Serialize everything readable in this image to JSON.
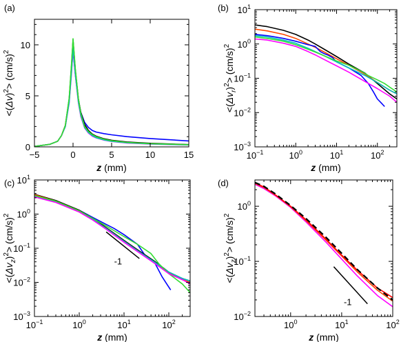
{
  "chart_data": [
    {
      "panel": "(a)",
      "type": "line",
      "xlabel_var": "z",
      "xlabel_unit": "(mm)",
      "ylabel_base": "<(",
      "ylabel_var": "Δv",
      "ylabel_sub": "",
      "ylabel_close": ")",
      "ylabel_sup": "2",
      "ylabel_unit": "> (cm/s)",
      "ylabel_unit_sup": "2",
      "xscale": "linear",
      "yscale": "linear",
      "xlim": [
        -5,
        15
      ],
      "ylim": [
        0,
        12.5
      ],
      "xticks": [
        -5,
        0,
        5,
        10,
        15
      ],
      "xtick_labels": [
        "−5",
        "0",
        "5",
        "10",
        "15"
      ],
      "yticks": [
        0,
        5,
        10
      ],
      "ytick_labels": [
        "0",
        "5",
        "10"
      ],
      "series": [
        {
          "color": "#0000ff",
          "x": [
            -5,
            -3,
            -2,
            -1.5,
            -1,
            -0.5,
            -0.2,
            0,
            0.3,
            0.7,
            1,
            1.5,
            2,
            2.5,
            3,
            4,
            5,
            7,
            10,
            15
          ],
          "y": [
            0.05,
            0.25,
            0.55,
            1.1,
            2,
            4.5,
            7.5,
            9.4,
            7,
            4.5,
            3.4,
            2.4,
            1.9,
            1.6,
            1.45,
            1.3,
            1.18,
            1.0,
            0.82,
            0.58
          ]
        },
        {
          "color": "#000000",
          "x": [
            -5,
            -3,
            -2,
            -1.5,
            -1,
            -0.5,
            -0.2,
            0,
            0.3,
            0.7,
            1,
            1.5,
            2,
            2.5,
            3,
            4,
            5,
            7,
            10,
            15
          ],
          "y": [
            0.05,
            0.25,
            0.55,
            1.1,
            2.1,
            4.7,
            8,
            10.5,
            7.5,
            4.7,
            3.4,
            2.2,
            1.6,
            1.25,
            1.05,
            0.8,
            0.65,
            0.48,
            0.35,
            0.22
          ]
        },
        {
          "color": "#ff4500",
          "x": [
            -5,
            -3,
            -2,
            -1.5,
            -1,
            -0.5,
            -0.2,
            0,
            0.3,
            0.7,
            1,
            1.5,
            2,
            2.5,
            3,
            4,
            5,
            7,
            10,
            15
          ],
          "y": [
            0.05,
            0.25,
            0.55,
            1.1,
            2.1,
            4.6,
            7.8,
            10.2,
            7.3,
            4.5,
            3.2,
            2.0,
            1.45,
            1.15,
            0.95,
            0.72,
            0.58,
            0.42,
            0.3,
            0.2
          ]
        },
        {
          "color": "#ff00ff",
          "x": [
            -5,
            -3,
            -2,
            -1.5,
            -1,
            -0.5,
            -0.2,
            0,
            0.3,
            0.7,
            1,
            1.5,
            2,
            2.5,
            3,
            4,
            5,
            7,
            10,
            15
          ],
          "y": [
            0.05,
            0.25,
            0.55,
            1.1,
            2,
            4.3,
            7.2,
            9.6,
            7,
            4.3,
            3.0,
            1.85,
            1.35,
            1.05,
            0.88,
            0.66,
            0.53,
            0.38,
            0.28,
            0.18
          ]
        },
        {
          "color": "#00bfbf",
          "x": [
            -5,
            -3,
            -2,
            -1.5,
            -1,
            -0.5,
            -0.2,
            0,
            0.3,
            0.7,
            1,
            1.5,
            2,
            2.5,
            3,
            4,
            5,
            7,
            10,
            15
          ],
          "y": [
            0.05,
            0.25,
            0.55,
            1.1,
            2,
            4.4,
            7.4,
            9.8,
            7.1,
            4.4,
            3.1,
            1.9,
            1.4,
            1.1,
            0.9,
            0.68,
            0.55,
            0.4,
            0.29,
            0.19
          ]
        },
        {
          "color": "#33dd33",
          "x": [
            -5,
            -3,
            -2,
            -1.5,
            -1,
            -0.5,
            -0.2,
            0,
            0.3,
            0.7,
            1,
            1.5,
            2,
            2.5,
            3,
            4,
            5,
            7,
            10,
            15
          ],
          "y": [
            0.05,
            0.25,
            0.55,
            1.1,
            2.1,
            4.8,
            8.2,
            10.6,
            7.6,
            4.7,
            3.3,
            2.0,
            1.5,
            1.2,
            1.0,
            0.75,
            0.6,
            0.44,
            0.32,
            0.21
          ]
        }
      ]
    },
    {
      "panel": "(b)",
      "type": "line",
      "xlabel_var": "z",
      "xlabel_unit": "(mm)",
      "ylabel_base": "<(",
      "ylabel_var": "Δv",
      "ylabel_sub": "r",
      "ylabel_close": ")",
      "ylabel_sup": "2",
      "ylabel_unit": "> (cm/s)",
      "ylabel_unit_sup": "2",
      "xscale": "log",
      "yscale": "log",
      "xlim": [
        0.1,
        300
      ],
      "ylim": [
        0.001,
        10
      ],
      "xticks": [
        0.1,
        1,
        10,
        100
      ],
      "xtick_labels": [
        [
          "10",
          "−1"
        ],
        [
          "10",
          "0"
        ],
        [
          "10",
          "1"
        ],
        [
          "10",
          "2"
        ]
      ],
      "yticks": [
        0.001,
        0.01,
        0.1,
        1,
        10
      ],
      "ytick_labels": [
        [
          "10",
          "−3"
        ],
        [
          "10",
          "−2"
        ],
        [
          "10",
          "−1"
        ],
        [
          "10",
          "0"
        ],
        [
          "10",
          "1"
        ]
      ],
      "series": [
        {
          "color": "#000000",
          "x": [
            0.1,
            0.2,
            0.5,
            1,
            2,
            3,
            5,
            10,
            20,
            50,
            100,
            200,
            300
          ],
          "y": [
            3.6,
            3.2,
            2.5,
            1.9,
            1.3,
            1.0,
            0.7,
            0.43,
            0.26,
            0.14,
            0.07,
            0.035,
            0.025
          ]
        },
        {
          "color": "#ff4500",
          "x": [
            0.1,
            0.2,
            0.5,
            1,
            2,
            3,
            5,
            10,
            20,
            50,
            100,
            200,
            300
          ],
          "y": [
            2.7,
            2.4,
            1.9,
            1.45,
            1.0,
            0.8,
            0.58,
            0.37,
            0.24,
            0.13,
            0.075,
            0.045,
            0.035
          ]
        },
        {
          "color": "#0000ff",
          "x": [
            0.1,
            0.2,
            0.5,
            1,
            2,
            3,
            4,
            5,
            6,
            8,
            10,
            20,
            40,
            60,
            80,
            100,
            120,
            150
          ],
          "y": [
            1.9,
            1.75,
            1.45,
            1.2,
            0.95,
            0.85,
            0.6,
            0.52,
            0.48,
            0.4,
            0.3,
            0.2,
            0.12,
            0.07,
            0.04,
            0.025,
            0.02,
            0.015
          ]
        },
        {
          "color": "#00bfbf",
          "x": [
            0.1,
            0.2,
            0.5,
            1,
            2,
            3,
            5,
            10,
            20,
            50,
            100,
            200,
            300
          ],
          "y": [
            1.75,
            1.6,
            1.3,
            1.05,
            0.75,
            0.6,
            0.45,
            0.3,
            0.2,
            0.12,
            0.075,
            0.045,
            0.035
          ]
        },
        {
          "color": "#33dd33",
          "x": [
            0.1,
            0.2,
            0.5,
            1,
            2,
            3,
            5,
            10,
            20,
            40,
            60,
            100,
            150,
            200,
            300
          ],
          "y": [
            1.6,
            1.45,
            1.2,
            0.95,
            0.7,
            0.58,
            0.45,
            0.32,
            0.24,
            0.16,
            0.12,
            0.09,
            0.07,
            0.055,
            0.04
          ]
        },
        {
          "color": "#ff00ff",
          "x": [
            0.1,
            0.2,
            0.5,
            1,
            2,
            3,
            5,
            10,
            20,
            50,
            100,
            200,
            300
          ],
          "y": [
            1.4,
            1.3,
            1.05,
            0.85,
            0.6,
            0.48,
            0.35,
            0.23,
            0.15,
            0.08,
            0.05,
            0.03,
            0.02
          ]
        }
      ]
    },
    {
      "panel": "(c)",
      "type": "line",
      "xlabel_var": "z",
      "xlabel_unit": "(mm)",
      "ylabel_base": "<(",
      "ylabel_var": "Δv",
      "ylabel_sub": "z",
      "ylabel_close": ")",
      "ylabel_sup": "2",
      "ylabel_unit": "> (cm/s)",
      "ylabel_unit_sup": "2",
      "xscale": "log",
      "yscale": "log",
      "xlim": [
        0.1,
        300
      ],
      "ylim": [
        0.001,
        10
      ],
      "xticks": [
        0.1,
        1,
        10,
        100
      ],
      "xtick_labels": [
        [
          "10",
          "−1"
        ],
        [
          "10",
          "0"
        ],
        [
          "10",
          "1"
        ],
        [
          "10",
          "2"
        ]
      ],
      "yticks": [
        0.001,
        0.01,
        0.1,
        1,
        10
      ],
      "ytick_labels": [
        [
          "10",
          "−3"
        ],
        [
          "10",
          "−2"
        ],
        [
          "10",
          "−1"
        ],
        [
          "10",
          "0"
        ],
        [
          "10",
          "1"
        ]
      ],
      "annotation": {
        "text": "-1",
        "line_x": [
          4,
          22
        ],
        "line_y": [
          0.3,
          0.05
        ],
        "text_x": 6,
        "text_y": 0.04
      },
      "series": [
        {
          "color": "#0000ff",
          "x": [
            0.1,
            0.3,
            1,
            2,
            4,
            6,
            10,
            20,
            30,
            50,
            70,
            90,
            110
          ],
          "y": [
            3.6,
            2.4,
            1.3,
            0.8,
            0.5,
            0.38,
            0.25,
            0.13,
            0.06,
            0.035,
            0.015,
            0.009,
            0.006
          ]
        },
        {
          "color": "#000000",
          "x": [
            0.1,
            0.3,
            1,
            2,
            4,
            10,
            20,
            50,
            100,
            200,
            300
          ],
          "y": [
            3.8,
            2.5,
            1.3,
            0.75,
            0.4,
            0.17,
            0.09,
            0.04,
            0.02,
            0.013,
            0.011
          ]
        },
        {
          "color": "#ff4500",
          "x": [
            0.1,
            0.3,
            1,
            2,
            4,
            10,
            20,
            50,
            100,
            200,
            300
          ],
          "y": [
            3.7,
            2.4,
            1.25,
            0.72,
            0.38,
            0.16,
            0.085,
            0.036,
            0.019,
            0.012,
            0.01
          ]
        },
        {
          "color": "#00bfbf",
          "x": [
            0.1,
            0.3,
            1,
            2,
            4,
            10,
            20,
            50,
            100,
            200,
            300
          ],
          "y": [
            3.4,
            2.3,
            1.2,
            0.7,
            0.38,
            0.16,
            0.085,
            0.038,
            0.02,
            0.013,
            0.011
          ]
        },
        {
          "color": "#33dd33",
          "x": [
            0.1,
            0.3,
            1,
            2,
            4,
            10,
            20,
            40,
            60,
            100,
            150,
            200,
            300
          ],
          "y": [
            3.5,
            2.4,
            1.25,
            0.75,
            0.45,
            0.22,
            0.13,
            0.07,
            0.035,
            0.018,
            0.012,
            0.009,
            0.005
          ]
        },
        {
          "color": "#ff00ff",
          "x": [
            0.1,
            0.3,
            1,
            2,
            4,
            10,
            20,
            50,
            100,
            200,
            300
          ],
          "y": [
            3.2,
            2.2,
            1.15,
            0.67,
            0.36,
            0.15,
            0.08,
            0.035,
            0.018,
            0.012,
            0.009
          ]
        }
      ]
    },
    {
      "panel": "(d)",
      "type": "line",
      "xlabel_var": "z",
      "xlabel_unit": "(mm)",
      "ylabel_base": "<(",
      "ylabel_var": "Δv",
      "ylabel_sub": "z",
      "ylabel_close": ")",
      "ylabel_sup": "2",
      "ylabel_unit": "> (cm/s)",
      "ylabel_unit_sup": "2",
      "xscale": "log",
      "yscale": "log",
      "xlim": [
        0.2,
        100
      ],
      "ylim": [
        0.01,
        3
      ],
      "xticks": [
        1,
        10,
        100
      ],
      "xtick_labels": [
        [
          "10",
          "0"
        ],
        [
          "10",
          "1"
        ],
        [
          "10",
          "2"
        ]
      ],
      "yticks": [
        0.01,
        0.1,
        1
      ],
      "ytick_labels": [
        [
          "10",
          "−2"
        ],
        [
          "10",
          "−1"
        ],
        [
          "10",
          "0"
        ]
      ],
      "annotation": {
        "text": "-1",
        "line_x": [
          7,
          32
        ],
        "line_y": [
          0.08,
          0.017
        ],
        "text_x": 11,
        "text_y": 0.018
      },
      "series": [
        {
          "color": "#ff00ff",
          "x": [
            0.2,
            0.3,
            0.5,
            1,
            2,
            5,
            10,
            20,
            50,
            100
          ],
          "y": [
            2.5,
            2.1,
            1.55,
            0.95,
            0.52,
            0.22,
            0.11,
            0.055,
            0.024,
            0.015
          ]
        },
        {
          "color": "#ff4500",
          "x": [
            0.2,
            0.3,
            0.5,
            1,
            2,
            5,
            10,
            20,
            50,
            100
          ],
          "y": [
            2.6,
            2.2,
            1.6,
            0.98,
            0.55,
            0.24,
            0.125,
            0.065,
            0.03,
            0.019
          ]
        },
        {
          "color": "#ff0000",
          "x": [
            0.2,
            0.3,
            0.5,
            1,
            2,
            5,
            10,
            20,
            50,
            100
          ],
          "y": [
            2.65,
            2.25,
            1.62,
            1.0,
            0.57,
            0.25,
            0.13,
            0.07,
            0.033,
            0.022
          ]
        },
        {
          "color": "#000000",
          "dash": "8,5",
          "x": [
            0.2,
            0.3,
            0.5,
            1,
            2,
            5,
            10,
            20,
            50,
            100
          ],
          "y": [
            2.7,
            2.3,
            1.68,
            1.03,
            0.6,
            0.27,
            0.14,
            0.072,
            0.033,
            0.02
          ]
        }
      ]
    }
  ]
}
